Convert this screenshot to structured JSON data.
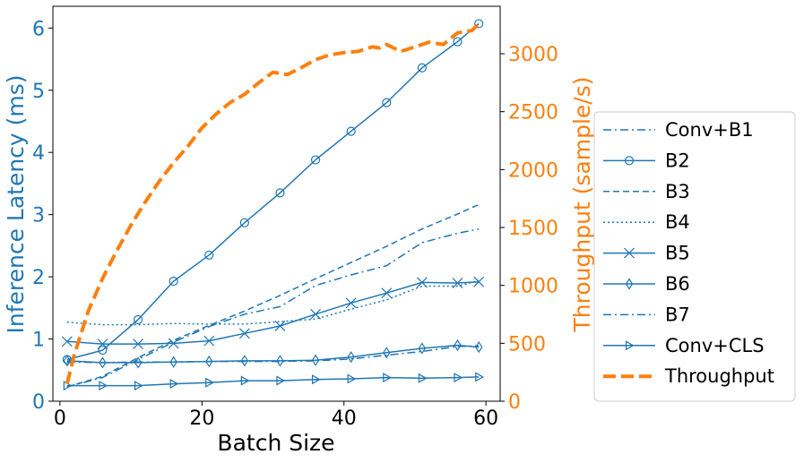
{
  "chart_data": {
    "type": "line",
    "x": [
      1,
      6,
      11,
      16,
      21,
      26,
      31,
      36,
      41,
      46,
      51,
      56,
      59
    ],
    "xlabel": "Batch Size",
    "ylabel": "Inference Latency (ms)",
    "y2label": "Throughput (sample/s)",
    "xlim": [
      -1,
      62
    ],
    "ylim": [
      0,
      6.35
    ],
    "y2lim": [
      0,
      3410
    ],
    "xticks": [
      0,
      20,
      40,
      60
    ],
    "yticks": [
      0,
      1,
      2,
      3,
      4,
      5,
      6
    ],
    "y2ticks": [
      0,
      500,
      1000,
      1500,
      2000,
      2500,
      3000
    ],
    "legend_position": "right",
    "colors": {
      "latency": "#1f77b4",
      "throughput": "#ff7f0e"
    },
    "series": [
      {
        "name": "Conv+B1",
        "axis": "left",
        "style": "dashdot",
        "marker": "none",
        "values": [
          0.63,
          0.62,
          0.63,
          0.63,
          0.64,
          0.64,
          0.64,
          0.65,
          0.68,
          0.74,
          0.8,
          0.88,
          0.89
        ]
      },
      {
        "name": "B2",
        "axis": "left",
        "style": "solid",
        "marker": "circle",
        "values": [
          0.67,
          0.82,
          1.31,
          1.93,
          2.35,
          2.87,
          3.35,
          3.88,
          4.34,
          4.8,
          5.36,
          5.78,
          6.07
        ]
      },
      {
        "name": "B3",
        "axis": "left",
        "style": "dashed",
        "marker": "none",
        "values": [
          0.23,
          0.4,
          0.7,
          0.98,
          1.22,
          1.45,
          1.7,
          1.97,
          2.23,
          2.49,
          2.77,
          3.01,
          3.16
        ]
      },
      {
        "name": "B4",
        "axis": "left",
        "style": "dotted",
        "marker": "none",
        "values": [
          1.27,
          1.23,
          1.23,
          1.25,
          1.24,
          1.24,
          1.28,
          1.32,
          1.48,
          1.63,
          1.85,
          1.85,
          1.94
        ]
      },
      {
        "name": "B5",
        "axis": "left",
        "style": "solid",
        "marker": "x",
        "values": [
          0.96,
          0.92,
          0.92,
          0.93,
          0.97,
          1.09,
          1.21,
          1.4,
          1.58,
          1.74,
          1.91,
          1.9,
          1.92
        ]
      },
      {
        "name": "B6",
        "axis": "left",
        "style": "solid",
        "marker": "diamond",
        "values": [
          0.65,
          0.62,
          0.62,
          0.63,
          0.64,
          0.65,
          0.65,
          0.66,
          0.71,
          0.78,
          0.85,
          0.9,
          0.87
        ]
      },
      {
        "name": "B7",
        "axis": "left",
        "style": "dashdot",
        "marker": "none",
        "values": [
          0.23,
          0.38,
          0.67,
          0.95,
          1.2,
          1.4,
          1.52,
          1.86,
          2.03,
          2.18,
          2.55,
          2.7,
          2.77
        ]
      },
      {
        "name": "Conv+CLS",
        "axis": "left",
        "style": "solid",
        "marker": "triangle-right",
        "values": [
          0.25,
          0.25,
          0.25,
          0.28,
          0.3,
          0.33,
          0.33,
          0.35,
          0.36,
          0.38,
          0.37,
          0.38,
          0.39
        ]
      },
      {
        "name": "Throughput",
        "axis": "right",
        "style": "thick-dashed",
        "marker": "none",
        "x": [
          1,
          2,
          4,
          6,
          8,
          10,
          12,
          14,
          16,
          18,
          20,
          22,
          24,
          26,
          28,
          30,
          32,
          34,
          36,
          38,
          40,
          42,
          44,
          45,
          46,
          48,
          50,
          52,
          54,
          56,
          58,
          59
        ],
        "values": [
          150,
          400,
          780,
          1060,
          1300,
          1520,
          1720,
          1900,
          2060,
          2200,
          2360,
          2480,
          2580,
          2650,
          2750,
          2840,
          2820,
          2880,
          2950,
          2990,
          3010,
          3020,
          3060,
          3050,
          3080,
          3020,
          3060,
          3100,
          3080,
          3180,
          3200,
          3260
        ]
      }
    ]
  }
}
